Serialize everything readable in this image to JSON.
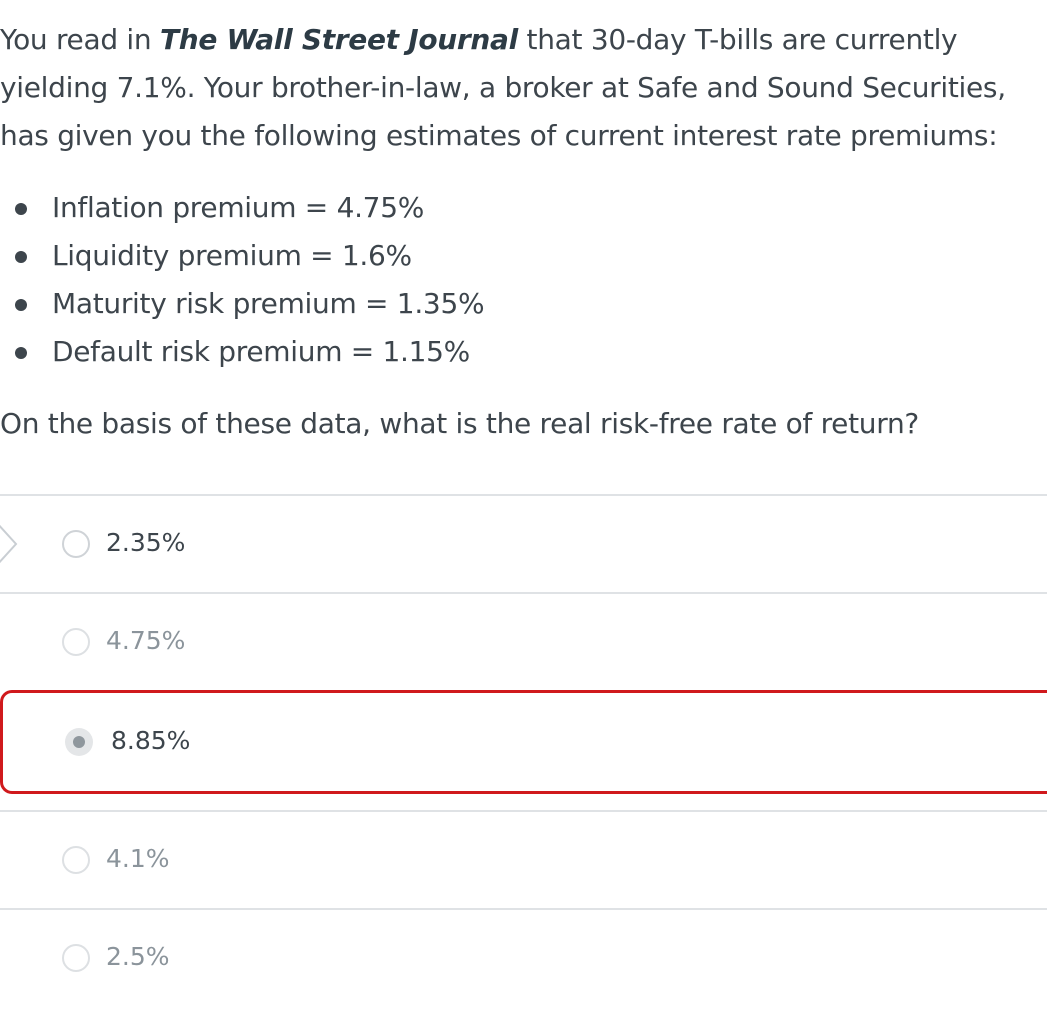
{
  "question": {
    "intro_before": "You read in ",
    "source": "The Wall Street Journal",
    "intro_after": " that 30-day T-bills are currently yielding 7.1%. Your brother-in-law, a broker at Safe and Sound Securities, has given you the following estimates of current interest rate premiums:",
    "premiums": [
      "Inflation premium = 4.75%",
      "Liquidity premium = 1.6%",
      "Maturity risk premium = 1.35%",
      "Default risk premium = 1.15%"
    ],
    "prompt": "On the basis of these data, what is the real risk-free rate of return?"
  },
  "answers": [
    {
      "label": "2.35%",
      "state": "current"
    },
    {
      "label": "4.75%",
      "state": "faded"
    },
    {
      "label": "8.85%",
      "state": "selected"
    },
    {
      "label": "4.1%",
      "state": "faded"
    },
    {
      "label": "2.5%",
      "state": "faded"
    }
  ],
  "colors": {
    "text": "#3d454c",
    "selected_border": "#d0191c",
    "divider": "#dfe2e5"
  }
}
